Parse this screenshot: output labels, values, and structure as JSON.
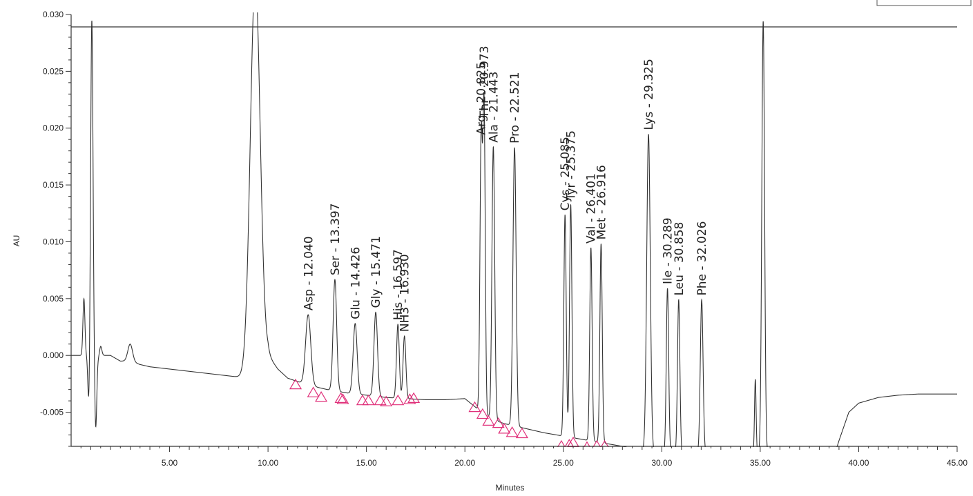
{
  "chart_data": {
    "type": "line",
    "title": "",
    "xlabel": "Minutes",
    "ylabel": "AU",
    "xlim": [
      0.0,
      45.0
    ],
    "ylim": [
      -0.008,
      0.03
    ],
    "x_ticks": [
      5.0,
      10.0,
      15.0,
      20.0,
      25.0,
      30.0,
      35.0,
      40.0,
      45.0
    ],
    "x_tick_labels": [
      "5.00",
      "10.00",
      "15.00",
      "20.00",
      "25.00",
      "30.00",
      "35.00",
      "40.00",
      "45.00"
    ],
    "y_ticks": [
      -0.005,
      0.0,
      0.005,
      0.01,
      0.015,
      0.02,
      0.025,
      0.03
    ],
    "y_tick_labels": [
      "-0.005",
      "0.000",
      "0.005",
      "0.010",
      "0.015",
      "0.020",
      "0.025",
      "0.030"
    ],
    "grid": false,
    "baseline": {
      "x": [
        0.0,
        0.5,
        0.8,
        1.0,
        1.1,
        1.3,
        1.5,
        2.0,
        2.5,
        3.0,
        3.5,
        4.0,
        5.0,
        6.0,
        7.0,
        8.0,
        9.0,
        9.3,
        10.0,
        10.5,
        11.0,
        12.0,
        13.0,
        14.0,
        15.0,
        16.0,
        17.0,
        18.0,
        19.0,
        20.0,
        20.5,
        21.0,
        21.5,
        22.0,
        23.0,
        24.0,
        25.0,
        26.0,
        27.0,
        28.0,
        29.0,
        29.5,
        30.0,
        31.0,
        32.0,
        33.0,
        34.0,
        35.0,
        36.0,
        37.0,
        38.0,
        38.8,
        39.0,
        39.5,
        40.0,
        41.0,
        42.0,
        43.0,
        44.0,
        45.0
      ],
      "y": [
        0.0,
        0.0,
        0.0,
        -0.001,
        0.0,
        -0.0005,
        0.0,
        0.0,
        -0.0005,
        -0.0005,
        -0.0008,
        -0.001,
        -0.0012,
        -0.0014,
        -0.0016,
        -0.0018,
        -0.002,
        -0.002,
        0.0,
        -0.0012,
        -0.002,
        -0.0026,
        -0.003,
        -0.0033,
        -0.0035,
        -0.0037,
        -0.0038,
        -0.0039,
        -0.0039,
        -0.0038,
        -0.0045,
        -0.0052,
        -0.0057,
        -0.006,
        -0.0064,
        -0.0068,
        -0.0071,
        -0.0074,
        -0.0077,
        -0.008,
        -0.0084,
        -0.0086,
        -0.0086,
        -0.0086,
        -0.0086,
        -0.0086,
        -0.0086,
        -0.0086,
        -0.0086,
        -0.0086,
        -0.0086,
        -0.0086,
        -0.0075,
        -0.005,
        -0.0042,
        -0.0037,
        -0.0035,
        -0.0034,
        -0.0034,
        -0.0034
      ]
    },
    "peaks": [
      {
        "rt": 0.65,
        "height": 0.005,
        "width": 0.05
      },
      {
        "rt": 0.9,
        "height": -0.004,
        "width": 0.05
      },
      {
        "rt": 1.05,
        "height": 0.03,
        "width": 0.06
      },
      {
        "rt": 1.25,
        "height": -0.006,
        "width": 0.05
      },
      {
        "rt": 1.5,
        "height": 0.0008,
        "width": 0.06
      },
      {
        "rt": 3.0,
        "height": 0.0015,
        "width": 0.12
      },
      {
        "rt": 9.35,
        "height": 0.035,
        "width": 0.25
      },
      {
        "rt": 12.04,
        "height": 0.0062,
        "width": 0.13,
        "label": "Asp - 12.040"
      },
      {
        "rt": 13.397,
        "height": 0.0098,
        "width": 0.09,
        "label": "Ser - 13.397"
      },
      {
        "rt": 14.426,
        "height": 0.0062,
        "width": 0.1,
        "label": "Glu - 14.426"
      },
      {
        "rt": 15.471,
        "height": 0.0074,
        "width": 0.09,
        "label": "Gly - 15.471"
      },
      {
        "rt": 16.597,
        "height": 0.0065,
        "width": 0.07,
        "label": "His - 16.597"
      },
      {
        "rt": 16.93,
        "height": 0.0055,
        "width": 0.07,
        "label": "NH3 - 16.930"
      },
      {
        "rt": 20.825,
        "height": 0.024,
        "width": 0.06,
        "label": "Arg - 20.825"
      },
      {
        "rt": 20.973,
        "height": 0.027,
        "width": 0.06,
        "label": "Thr - 20.973"
      },
      {
        "rt": 21.443,
        "height": 0.024,
        "width": 0.07,
        "label": "Ala - 21.443"
      },
      {
        "rt": 22.521,
        "height": 0.0245,
        "width": 0.08,
        "label": "Pro - 22.521"
      },
      {
        "rt": 25.085,
        "height": 0.0195,
        "width": 0.06,
        "label": "Cys - 25.085"
      },
      {
        "rt": 25.375,
        "height": 0.0205,
        "width": 0.06,
        "label": "Tyr - 25.375"
      },
      {
        "rt": 26.401,
        "height": 0.017,
        "width": 0.06,
        "label": "Val - 26.401"
      },
      {
        "rt": 26.916,
        "height": 0.0175,
        "width": 0.06,
        "label": "Met - 26.916"
      },
      {
        "rt": 29.325,
        "height": 0.028,
        "width": 0.09,
        "label": "Lys - 29.325"
      },
      {
        "rt": 30.289,
        "height": 0.0145,
        "width": 0.06,
        "label": "Ile - 30.289"
      },
      {
        "rt": 30.858,
        "height": 0.0135,
        "width": 0.06,
        "label": "Leu - 30.858"
      },
      {
        "rt": 32.026,
        "height": 0.0135,
        "width": 0.07,
        "label": "Phe - 32.026"
      },
      {
        "rt": 34.75,
        "height": 0.0065,
        "width": 0.04
      },
      {
        "rt": 35.15,
        "height": 0.038,
        "width": 0.07
      }
    ],
    "integration_markers": {
      "x": [
        11.4,
        12.3,
        12.7,
        13.7,
        13.8,
        14.8,
        15.1,
        15.7,
        16.0,
        16.6,
        17.2,
        17.4,
        20.5,
        20.9,
        21.2,
        21.7,
        22.0,
        22.4,
        22.9,
        24.9,
        25.3,
        25.5,
        26.2,
        26.7,
        27.1
      ],
      "y": [
        -0.0026,
        -0.0033,
        -0.0037,
        -0.0038,
        -0.0039,
        -0.004,
        -0.004,
        -0.004,
        -0.0041,
        -0.004,
        -0.0039,
        -0.0038,
        -0.0046,
        -0.0052,
        -0.0058,
        -0.006,
        -0.0065,
        -0.0068,
        -0.0069,
        -0.008,
        -0.0079,
        -0.0077,
        -0.0081,
        -0.008,
        -0.008
      ]
    }
  }
}
